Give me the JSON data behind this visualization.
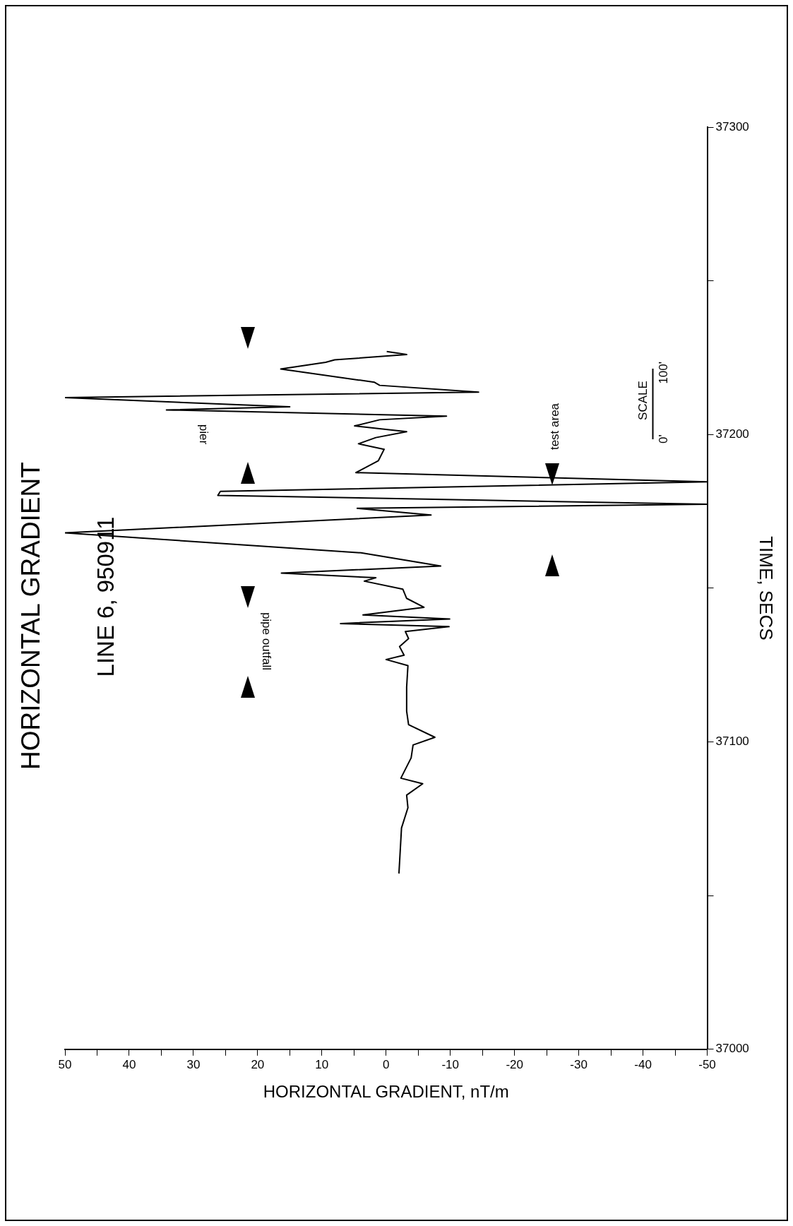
{
  "chart_data": {
    "type": "line",
    "orientation": "horizontal",
    "title": "HORIZONTAL GRADIENT",
    "subtitle": "LINE 6, 950911",
    "xlabel": "HORIZONTAL GRADIENT, nT/m",
    "ylabel": "TIME, SECS",
    "x": [
      37057.2,
      37072,
      37078.6,
      37082.7,
      37086.4,
      37088.2,
      37094.8,
      37099,
      37101.5,
      37105.6,
      37110,
      37117.8,
      37124.8,
      37126.8,
      37128.2,
      37131,
      37133.6,
      37135.9,
      37137.5,
      37138.5,
      37140,
      37141.3,
      37143.8,
      37146.7,
      37149.7,
      37152.3,
      37153.4,
      37154.9,
      37157.2,
      37161.5,
      37168,
      37173.8,
      37176,
      37177.3,
      37180.2,
      37181.5,
      37184.6,
      37187.6,
      37191.5,
      37195.2,
      37197,
      37199,
      37200.9,
      37202.8,
      37204.8,
      37206,
      37208,
      37209,
      37212,
      37213.8,
      37216,
      37217,
      37221.3,
      37223.5,
      37224.3,
      37226,
      37227
    ],
    "values": [
      -2.0,
      -2.4,
      -3.4,
      -3.2,
      -5.7,
      -2.3,
      -3.9,
      -4.2,
      -7.6,
      -3.5,
      -3.2,
      -3.2,
      -3.4,
      0.0,
      -2.8,
      -2.1,
      -3.5,
      -3.0,
      -9.8,
      7.1,
      -9.9,
      3.6,
      -5.9,
      -3.2,
      -2.6,
      3.4,
      1.6,
      16.3,
      -8.5,
      3.9,
      50,
      -7.0,
      4.5,
      -50,
      26.2,
      25.8,
      -50,
      4.7,
      1.2,
      0.3,
      4.3,
      1.6,
      -3.2,
      4.9,
      1.0,
      -9.4,
      34.2,
      15.0,
      50,
      -14.4,
      1.0,
      1.8,
      16.4,
      9.4,
      8.0,
      -3.2,
      -0.1
    ],
    "color": "#000000",
    "marker": "none",
    "line_style": "solid",
    "grid": false,
    "legend": false,
    "ylim": [
      37000,
      37300
    ],
    "yticks": [
      37000,
      {
        "value": 37050,
        "label": null
      },
      37100,
      {
        "value": 37150,
        "label": null
      },
      37200,
      {
        "value": 37250,
        "label": null
      },
      37300
    ],
    "xlim": [
      50,
      -50
    ],
    "xticks": [
      -50,
      {
        "value": -45,
        "label": null
      },
      -40,
      {
        "value": -35,
        "label": null
      },
      -30,
      {
        "value": -25,
        "label": null
      },
      -20,
      {
        "value": -15,
        "label": null
      },
      -10,
      {
        "value": -5,
        "label": null
      },
      0,
      {
        "value": 5,
        "label": null
      },
      10,
      {
        "value": 15,
        "label": null
      },
      20,
      {
        "value": 25,
        "label": null
      },
      30,
      {
        "value": 35,
        "label": null
      },
      40,
      {
        "value": 45,
        "label": null
      },
      50
    ],
    "annotations": [
      "pipe outfall",
      "pier",
      "test area",
      "SCALE",
      "0'",
      "100'"
    ]
  }
}
